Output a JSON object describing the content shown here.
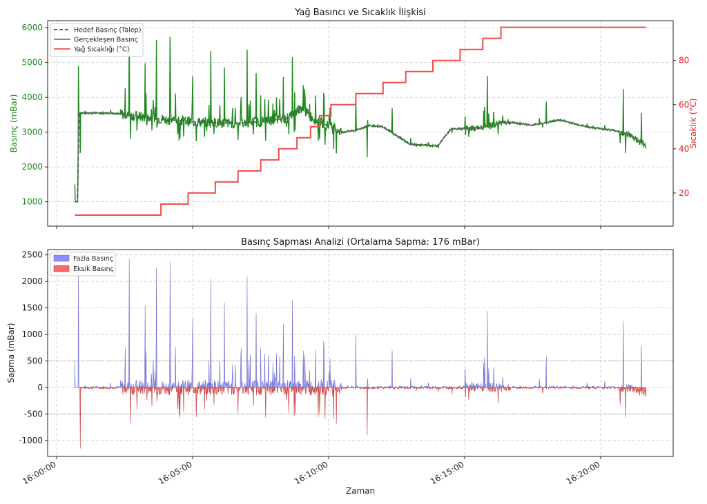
{
  "chart_data": [
    {
      "type": "line",
      "title": "Yağ Basıncı ve Sıcaklık İlişkisi",
      "xlabel": "",
      "ylabel": "Basınç (mBar)",
      "y2label": "Sıcaklık (°C)",
      "x_start": "16:00:00",
      "x_end": "16:22:00",
      "x_range": [
        "15:59:40",
        "16:22:40"
      ],
      "ylim": [
        300,
        6200
      ],
      "y2lim": [
        5,
        98
      ],
      "yticks": [
        1000,
        2000,
        3000,
        4000,
        5000,
        6000
      ],
      "y2ticks": [
        20,
        40,
        60,
        80
      ],
      "grid": true,
      "legend_position": "top-left",
      "colors": {
        "target": "#5f5f5f",
        "actual": "#1e8a1e",
        "temperature": "#f24b4b"
      },
      "series": [
        {
          "name": "Hedef Basınç (Talep)",
          "style": "dashed",
          "points": [
            [
              "16:00:40",
              1000
            ],
            [
              "16:00:46",
              1000
            ],
            [
              "16:00:49",
              3550
            ],
            [
              "16:02:00",
              3550
            ],
            [
              "16:03:30",
              3400
            ],
            [
              "16:05:00",
              3300
            ],
            [
              "16:06:30",
              3250
            ],
            [
              "16:07:30",
              3300
            ],
            [
              "16:08:30",
              3400
            ],
            [
              "16:09:00",
              3700
            ],
            [
              "16:09:30",
              3350
            ],
            [
              "16:10:30",
              3000
            ],
            [
              "16:11:00",
              3050
            ],
            [
              "16:11:30",
              3200
            ],
            [
              "16:12:00",
              3150
            ],
            [
              "16:13:00",
              2650
            ],
            [
              "16:14:00",
              2600
            ],
            [
              "16:14:30",
              3100
            ],
            [
              "16:15:30",
              3100
            ],
            [
              "16:16:30",
              3300
            ],
            [
              "16:17:30",
              3200
            ],
            [
              "16:18:30",
              3350
            ],
            [
              "16:19:30",
              3150
            ],
            [
              "16:20:30",
              3050
            ],
            [
              "16:21:00",
              2950
            ],
            [
              "16:21:40",
              2700
            ]
          ]
        },
        {
          "name": "Gerçekleşen Basınç",
          "style": "solid",
          "anchors": [
            [
              "16:00:40",
              1000
            ],
            [
              "16:00:46",
              1000
            ],
            [
              "16:00:49",
              3550
            ],
            [
              "16:02:00",
              3550
            ],
            [
              "16:02:30",
              3500
            ],
            [
              "16:03:30",
              3400
            ],
            [
              "16:05:00",
              3300
            ],
            [
              "16:06:30",
              3250
            ],
            [
              "16:07:30",
              3300
            ],
            [
              "16:08:30",
              3400
            ],
            [
              "16:09:00",
              3700
            ],
            [
              "16:09:30",
              3350
            ],
            [
              "16:10:30",
              3000
            ],
            [
              "16:11:00",
              3050
            ],
            [
              "16:11:30",
              3200
            ],
            [
              "16:12:00",
              3150
            ],
            [
              "16:13:00",
              2650
            ],
            [
              "16:14:00",
              2600
            ],
            [
              "16:14:30",
              3100
            ],
            [
              "16:15:30",
              3100
            ],
            [
              "16:16:30",
              3300
            ],
            [
              "16:17:30",
              3200
            ],
            [
              "16:18:30",
              3350
            ],
            [
              "16:19:30",
              3150
            ],
            [
              "16:20:30",
              3050
            ],
            [
              "16:21:00",
              2950
            ],
            [
              "16:21:40",
              2600
            ]
          ]
        },
        {
          "name": "Yağ Sıcaklığı (°C)",
          "axis": "right",
          "style": "step",
          "points": [
            [
              "16:00:40",
              10
            ],
            [
              "16:03:50",
              10
            ],
            [
              "16:03:50",
              15
            ],
            [
              "16:04:50",
              15
            ],
            [
              "16:04:50",
              20
            ],
            [
              "16:05:50",
              20
            ],
            [
              "16:05:50",
              25
            ],
            [
              "16:06:40",
              25
            ],
            [
              "16:06:40",
              30
            ],
            [
              "16:07:30",
              30
            ],
            [
              "16:07:30",
              35
            ],
            [
              "16:08:10",
              35
            ],
            [
              "16:08:10",
              40
            ],
            [
              "16:08:50",
              40
            ],
            [
              "16:08:50",
              45
            ],
            [
              "16:09:20",
              45
            ],
            [
              "16:09:20",
              50
            ],
            [
              "16:09:40",
              50
            ],
            [
              "16:09:40",
              55
            ],
            [
              "16:10:05",
              55
            ],
            [
              "16:10:05",
              60
            ],
            [
              "16:11:00",
              60
            ],
            [
              "16:11:00",
              65
            ],
            [
              "16:12:00",
              65
            ],
            [
              "16:12:00",
              70
            ],
            [
              "16:12:50",
              70
            ],
            [
              "16:12:50",
              75
            ],
            [
              "16:13:50",
              75
            ],
            [
              "16:13:50",
              80
            ],
            [
              "16:14:50",
              80
            ],
            [
              "16:14:50",
              85
            ],
            [
              "16:15:40",
              85
            ],
            [
              "16:15:40",
              90
            ],
            [
              "16:16:20",
              90
            ],
            [
              "16:16:20",
              95
            ],
            [
              "16:21:40",
              95
            ]
          ]
        }
      ]
    },
    {
      "type": "area",
      "title": "Basınç Sapması Analizi (Ortalama Sapma: 176 mBar)",
      "xlabel": "Zaman",
      "ylabel": "Sapma (mBar)",
      "x_range": [
        "15:59:40",
        "16:22:40"
      ],
      "ylim": [
        -1300,
        2600
      ],
      "yticks": [
        -1000,
        -500,
        0,
        500,
        1000,
        1500,
        2000,
        2500
      ],
      "xticks": [
        "16:00:00",
        "16:05:00",
        "16:10:00",
        "16:15:00",
        "16:20:00"
      ],
      "reference_lines": [
        500,
        -500
      ],
      "grid": true,
      "legend_position": "top-left",
      "colors": {
        "positive": "#8f8ff5",
        "positive_line": "#6a6acf",
        "negative": "#f26a6a",
        "negative_line": "#c83c3c"
      },
      "series": [
        {
          "name": "Fazla Basınç",
          "sign": "positive"
        },
        {
          "name": "Eksik Basınç",
          "sign": "negative"
        }
      ],
      "spikes": [
        [
          "16:00:40",
          500
        ],
        [
          "16:00:48",
          2200
        ],
        [
          "16:00:52",
          -1150
        ],
        [
          "16:02:40",
          2420
        ],
        [
          "16:03:15",
          1550
        ],
        [
          "16:03:40",
          2260
        ],
        [
          "16:04:10",
          2380
        ],
        [
          "16:05:00",
          1300
        ],
        [
          "16:05:40",
          2050
        ],
        [
          "16:06:10",
          1600
        ],
        [
          "16:07:00",
          2100
        ],
        [
          "16:07:20",
          1400
        ],
        [
          "16:08:20",
          1200
        ],
        [
          "16:08:40",
          1650
        ],
        [
          "16:11:00",
          1000
        ],
        [
          "16:11:25",
          -900
        ],
        [
          "16:12:20",
          700
        ],
        [
          "16:15:50",
          1450
        ],
        [
          "16:18:00",
          600
        ],
        [
          "16:20:50",
          1250
        ],
        [
          "16:20:55",
          -570
        ],
        [
          "16:21:30",
          870
        ]
      ]
    }
  ]
}
